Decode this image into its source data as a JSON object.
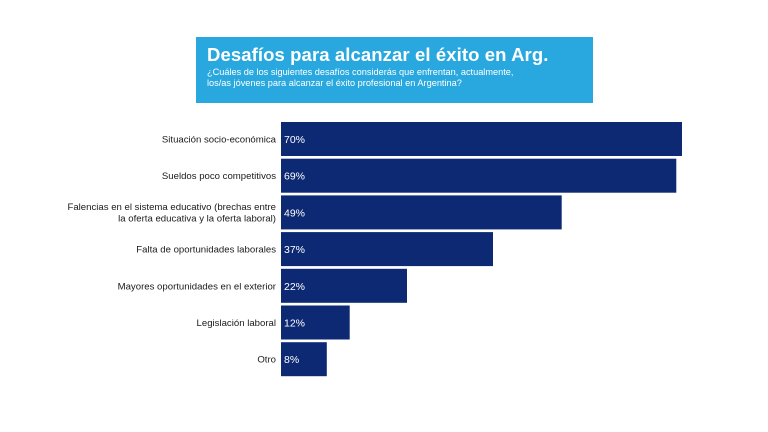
{
  "header": {
    "title": "Desafíos para alcanzar el éxito en Arg.",
    "subtitle_line1": "¿Cuáles de los siguientes desafíos considerás que enfrentan, actualmente,",
    "subtitle_line2": "los/as jóvenes para alcanzar el éxito profesional en Argentina?"
  },
  "colors": {
    "bar": "#0d2973",
    "title_bg": "#29a8e0"
  },
  "chart_data": {
    "type": "bar",
    "orientation": "horizontal",
    "title": "Desafíos para alcanzar el éxito en Arg.",
    "categories": [
      [
        "Situación socio-económica"
      ],
      [
        "Sueldos poco competitivos"
      ],
      [
        "Falencias en el sistema educativo (brechas entre",
        "la oferta educativa y la oferta laboral)"
      ],
      [
        "Falta de oportunidades laborales"
      ],
      [
        "Mayores oportunidades en el exterior"
      ],
      [
        "Legislación laboral"
      ],
      [
        "Otro"
      ]
    ],
    "values": [
      70,
      69,
      49,
      37,
      22,
      12,
      8
    ],
    "value_labels": [
      "70%",
      "69%",
      "49%",
      "37%",
      "22%",
      "12%",
      "8%"
    ],
    "unit": "%",
    "xlim": [
      0,
      70
    ],
    "xlabel": "",
    "ylabel": "",
    "grid": false,
    "legend": "none"
  }
}
